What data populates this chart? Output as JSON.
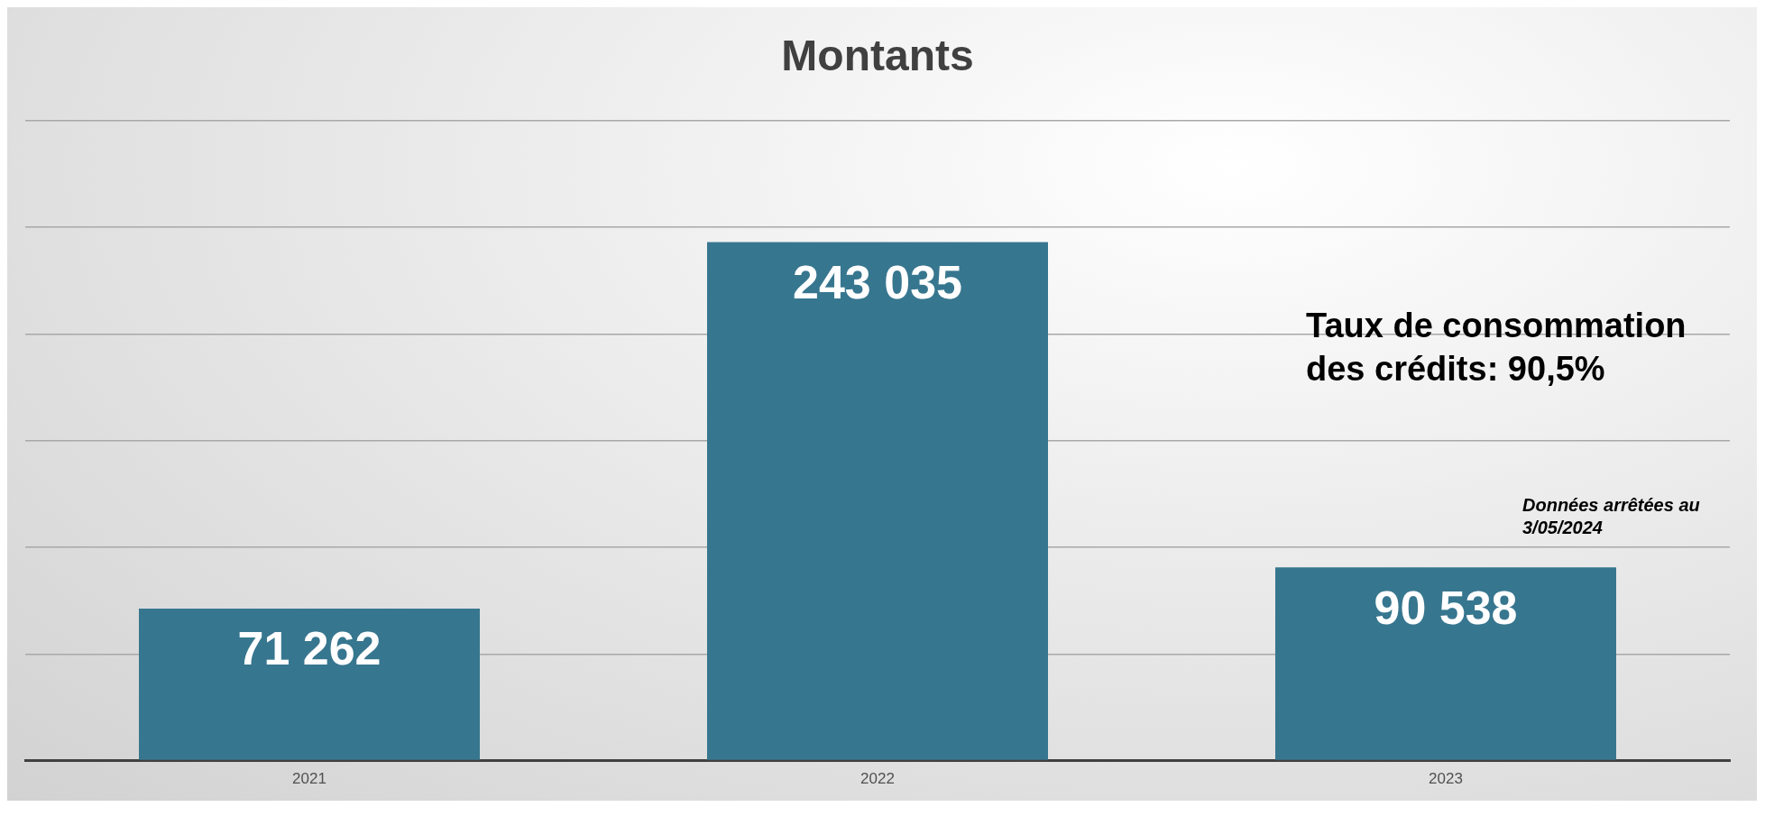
{
  "chart_data": {
    "type": "bar",
    "title": "Montants",
    "categories": [
      "2021",
      "2022",
      "2023"
    ],
    "values": [
      71262,
      243035,
      90538
    ],
    "color": "#37768f",
    "ylim": [
      0,
      300000
    ],
    "yticks": [
      {
        "value": 0,
        "label": null
      },
      {
        "value": 50000,
        "label": null
      },
      {
        "value": 100000,
        "label": null
      },
      {
        "value": 150000,
        "label": null
      },
      {
        "value": 200000,
        "label": null
      },
      {
        "value": 250000,
        "label": null
      },
      {
        "value": 300000,
        "label": null
      }
    ],
    "tick_labels": "x",
    "grid": "y",
    "legend": false,
    "data_labels": true,
    "annotations": [
      "Taux de consommation des crédits: 90,5%",
      "Données arrêtées au 3/05/2024"
    ]
  }
}
